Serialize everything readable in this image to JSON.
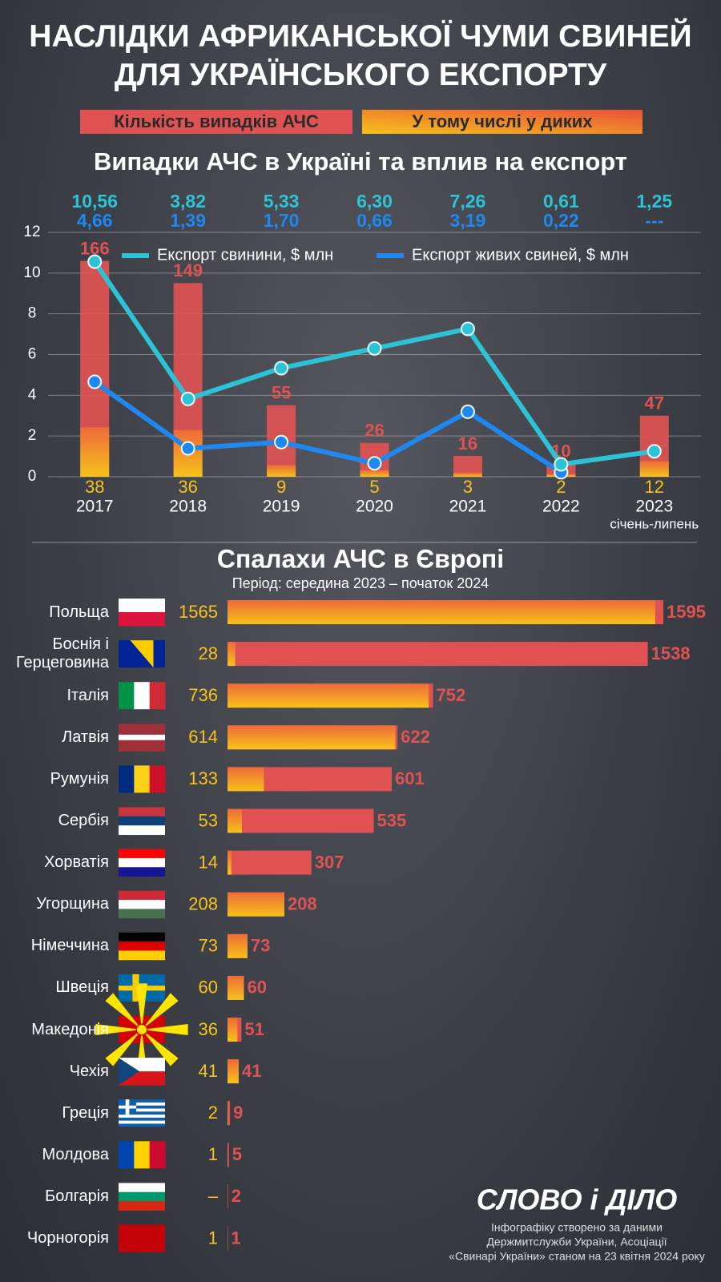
{
  "title": "НАСЛІДКИ АФРИКАНСЬКОЇ ЧУМИ СВИНЕЙ ДЛЯ УКРАЇНСЬКОГО ЕКСПОРТУ",
  "chart_data": [
    {
      "type": "bar",
      "title": "Випадки АЧС в Україні та вплив на експорт",
      "categories": [
        "2017",
        "2018",
        "2019",
        "2020",
        "2021",
        "2022",
        "2023"
      ],
      "category_note": "січень-липень",
      "series": [
        {
          "name": "Кількість випадків АЧС",
          "type": "bar",
          "axis": "y2",
          "color": "#e05252",
          "values": [
            166,
            149,
            55,
            26,
            16,
            10,
            47
          ]
        },
        {
          "name": "У тому числі у диких",
          "type": "bar",
          "axis": "y2",
          "color": "#f7c21a",
          "values": [
            38,
            36,
            9,
            5,
            3,
            2,
            12
          ]
        },
        {
          "name": "Експорт свинини, $ млн",
          "type": "line",
          "color": "#2cc3d6",
          "values": [
            10.56,
            3.82,
            5.33,
            6.3,
            7.26,
            0.61,
            1.25
          ],
          "value_labels": [
            "10,56",
            "3,82",
            "5,33",
            "6,30",
            "7,26",
            "0,61",
            "1,25"
          ]
        },
        {
          "name": "Експорт живих свиней, $ млн",
          "type": "line",
          "color": "#1e88f0",
          "values": [
            4.66,
            1.39,
            1.7,
            0.66,
            3.19,
            0.22,
            null
          ],
          "value_labels": [
            "4,66",
            "1,39",
            "1,70",
            "0,66",
            "3,19",
            "0,22",
            "---"
          ]
        }
      ],
      "ylim": [
        0,
        12
      ],
      "yticks": [
        0,
        2,
        4,
        6,
        8,
        10,
        12
      ],
      "y2lim": [
        0,
        188
      ],
      "grid": true
    },
    {
      "type": "hbar",
      "title": "Спалахи АЧС в Європі",
      "subtitle": "Період: середина 2023 – початок 2024",
      "categories": [
        "Польща",
        "Боснія і Герцеговина",
        "Італія",
        "Латвія",
        "Румунія",
        "Сербія",
        "Хорватія",
        "Угорщина",
        "Німеччина",
        "Швеція",
        "Македонія",
        "Чехія",
        "Греція",
        "Молдова",
        "Болгарія",
        "Чорногорія"
      ],
      "series": [
        {
          "color": "#e05252",
          "values": [
            1595,
            1538,
            752,
            622,
            601,
            535,
            307,
            208,
            73,
            60,
            51,
            41,
            9,
            5,
            2,
            1
          ]
        },
        {
          "color": "#f7c21a",
          "values": [
            1565,
            28,
            736,
            614,
            133,
            53,
            14,
            208,
            73,
            60,
            36,
            41,
            2,
            1,
            null,
            1
          ],
          "value_labels": [
            "1565",
            "28",
            "736",
            "614",
            "133",
            "53",
            "14",
            "208",
            "73",
            "60",
            "36",
            "41",
            "2",
            "1",
            "–",
            "1"
          ]
        }
      ],
      "xlim": [
        0,
        1630
      ]
    }
  ],
  "logo": "СЛОВО і ДІЛО",
  "source": [
    "Інфографіку створено за даними",
    "Держмитслужби України, Асоціації",
    "«Свинарі України» станом на 23 квітня 2024 року"
  ]
}
